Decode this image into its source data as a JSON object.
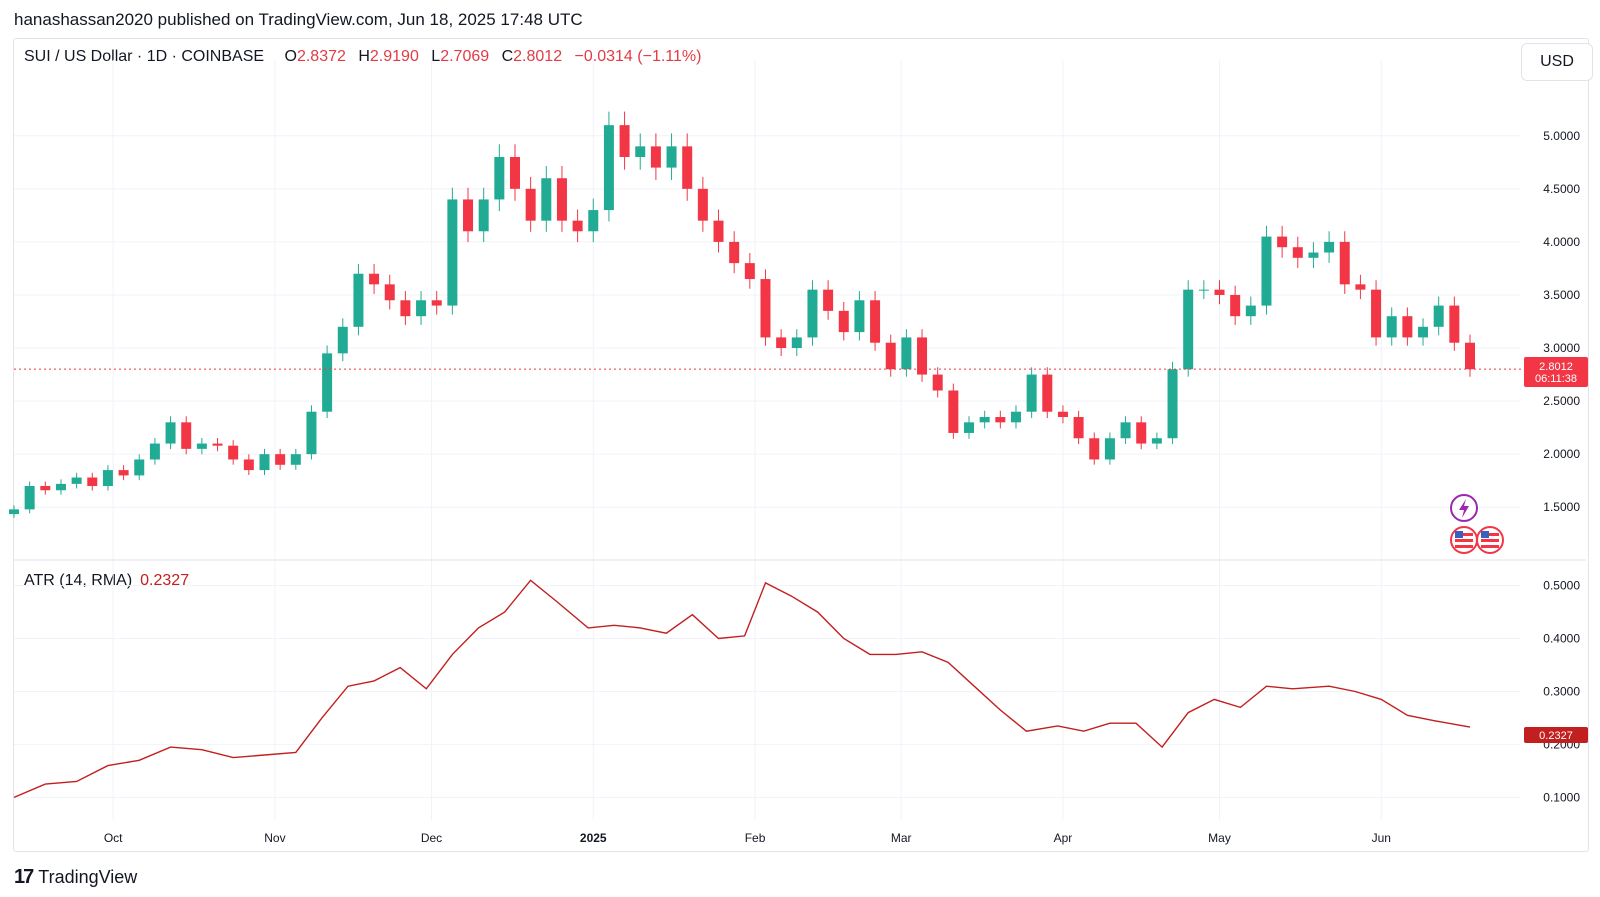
{
  "header": {
    "published_text": "hanashassan2020 published on TradingView.com, Jun 18, 2025 17:48 UTC"
  },
  "legend": {
    "symbol": "SUI / US Dollar · 1D · COINBASE",
    "o_label": "O",
    "o_value": "2.8372",
    "h_label": "H",
    "h_value": "2.9190",
    "l_label": "L",
    "l_value": "2.7069",
    "c_label": "C",
    "c_value": "2.8012",
    "change": "−0.0314 (−1.11%)"
  },
  "currency_button": "USD",
  "atr_legend": {
    "label": "ATR (14, RMA)",
    "value": "0.2327"
  },
  "price_badge": {
    "price": "2.8012",
    "countdown": "06:11:38"
  },
  "atr_badge": "0.2327",
  "footer": {
    "brand": "TradingView"
  },
  "colors": {
    "up": "#22ab94",
    "down": "#f23645",
    "atr": "#c21f1f",
    "last_price": "#f23645"
  },
  "icons": [
    "lightning-icon",
    "us-flag-icon",
    "us-flag-icon"
  ],
  "chart_data": [
    {
      "type": "candlestick",
      "title": "SUI / US Dollar · 1D · COINBASE",
      "x_ticks": [
        "Oct",
        "Nov",
        "Dec",
        "2025",
        "Feb",
        "Mar",
        "Apr",
        "May",
        "Jun"
      ],
      "y_ticks": [
        "1.5000",
        "2.0000",
        "2.5000",
        "3.0000",
        "3.5000",
        "4.0000",
        "4.5000",
        "5.0000"
      ],
      "ylim": [
        1.05,
        5.45
      ],
      "x_range": [
        "2024-09-12",
        "2025-06-18"
      ],
      "last_price": 2.8012,
      "closes": [
        {
          "d": "2024-09-12",
          "c": 1.48
        },
        {
          "d": "2024-09-15",
          "c": 1.7
        },
        {
          "d": "2024-09-18",
          "c": 1.66
        },
        {
          "d": "2024-09-21",
          "c": 1.72
        },
        {
          "d": "2024-09-24",
          "c": 1.78
        },
        {
          "d": "2024-09-27",
          "c": 1.7
        },
        {
          "d": "2024-09-30",
          "c": 1.85
        },
        {
          "d": "2024-10-03",
          "c": 1.8
        },
        {
          "d": "2024-10-06",
          "c": 1.95
        },
        {
          "d": "2024-10-09",
          "c": 2.1
        },
        {
          "d": "2024-10-12",
          "c": 2.3
        },
        {
          "d": "2024-10-15",
          "c": 2.05
        },
        {
          "d": "2024-10-18",
          "c": 2.1
        },
        {
          "d": "2024-10-21",
          "c": 2.08
        },
        {
          "d": "2024-10-24",
          "c": 1.95
        },
        {
          "d": "2024-10-27",
          "c": 1.85
        },
        {
          "d": "2024-10-30",
          "c": 2.0
        },
        {
          "d": "2024-11-02",
          "c": 1.9
        },
        {
          "d": "2024-11-05",
          "c": 2.0
        },
        {
          "d": "2024-11-08",
          "c": 2.4
        },
        {
          "d": "2024-11-11",
          "c": 2.95
        },
        {
          "d": "2024-11-14",
          "c": 3.2
        },
        {
          "d": "2024-11-17",
          "c": 3.7
        },
        {
          "d": "2024-11-20",
          "c": 3.6
        },
        {
          "d": "2024-11-23",
          "c": 3.45
        },
        {
          "d": "2024-11-26",
          "c": 3.3
        },
        {
          "d": "2024-11-29",
          "c": 3.45
        },
        {
          "d": "2024-12-02",
          "c": 3.4
        },
        {
          "d": "2024-12-05",
          "c": 4.4
        },
        {
          "d": "2024-12-08",
          "c": 4.1
        },
        {
          "d": "2024-12-11",
          "c": 4.4
        },
        {
          "d": "2024-12-14",
          "c": 4.8
        },
        {
          "d": "2024-12-17",
          "c": 4.5
        },
        {
          "d": "2024-12-20",
          "c": 4.2
        },
        {
          "d": "2024-12-23",
          "c": 4.6
        },
        {
          "d": "2024-12-26",
          "c": 4.2
        },
        {
          "d": "2024-12-29",
          "c": 4.1
        },
        {
          "d": "2025-01-01",
          "c": 4.3
        },
        {
          "d": "2025-01-04",
          "c": 5.1
        },
        {
          "d": "2025-01-07",
          "c": 4.8
        },
        {
          "d": "2025-01-10",
          "c": 4.9
        },
        {
          "d": "2025-01-13",
          "c": 4.7
        },
        {
          "d": "2025-01-16",
          "c": 4.9
        },
        {
          "d": "2025-01-19",
          "c": 4.5
        },
        {
          "d": "2025-01-22",
          "c": 4.2
        },
        {
          "d": "2025-01-25",
          "c": 4.0
        },
        {
          "d": "2025-01-28",
          "c": 3.8
        },
        {
          "d": "2025-01-31",
          "c": 3.65
        },
        {
          "d": "2025-02-03",
          "c": 3.1
        },
        {
          "d": "2025-02-06",
          "c": 3.0
        },
        {
          "d": "2025-02-09",
          "c": 3.1
        },
        {
          "d": "2025-02-12",
          "c": 3.55
        },
        {
          "d": "2025-02-15",
          "c": 3.35
        },
        {
          "d": "2025-02-18",
          "c": 3.15
        },
        {
          "d": "2025-02-21",
          "c": 3.45
        },
        {
          "d": "2025-02-24",
          "c": 3.05
        },
        {
          "d": "2025-02-27",
          "c": 2.8
        },
        {
          "d": "2025-03-02",
          "c": 3.1
        },
        {
          "d": "2025-03-05",
          "c": 2.75
        },
        {
          "d": "2025-03-08",
          "c": 2.6
        },
        {
          "d": "2025-03-11",
          "c": 2.2
        },
        {
          "d": "2025-03-14",
          "c": 2.3
        },
        {
          "d": "2025-03-17",
          "c": 2.35
        },
        {
          "d": "2025-03-20",
          "c": 2.3
        },
        {
          "d": "2025-03-23",
          "c": 2.4
        },
        {
          "d": "2025-03-26",
          "c": 2.75
        },
        {
          "d": "2025-03-29",
          "c": 2.4
        },
        {
          "d": "2025-04-01",
          "c": 2.35
        },
        {
          "d": "2025-04-04",
          "c": 2.15
        },
        {
          "d": "2025-04-07",
          "c": 1.95
        },
        {
          "d": "2025-04-10",
          "c": 2.15
        },
        {
          "d": "2025-04-13",
          "c": 2.3
        },
        {
          "d": "2025-04-16",
          "c": 2.1
        },
        {
          "d": "2025-04-19",
          "c": 2.15
        },
        {
          "d": "2025-04-22",
          "c": 2.8
        },
        {
          "d": "2025-04-25",
          "c": 3.55
        },
        {
          "d": "2025-04-28",
          "c": 3.55
        },
        {
          "d": "2025-05-01",
          "c": 3.5
        },
        {
          "d": "2025-05-04",
          "c": 3.3
        },
        {
          "d": "2025-05-07",
          "c": 3.4
        },
        {
          "d": "2025-05-10",
          "c": 4.05
        },
        {
          "d": "2025-05-13",
          "c": 3.95
        },
        {
          "d": "2025-05-16",
          "c": 3.85
        },
        {
          "d": "2025-05-19",
          "c": 3.9
        },
        {
          "d": "2025-05-22",
          "c": 4.0
        },
        {
          "d": "2025-05-25",
          "c": 3.6
        },
        {
          "d": "2025-05-28",
          "c": 3.55
        },
        {
          "d": "2025-05-31",
          "c": 3.1
        },
        {
          "d": "2025-06-03",
          "c": 3.3
        },
        {
          "d": "2025-06-06",
          "c": 3.1
        },
        {
          "d": "2025-06-09",
          "c": 3.2
        },
        {
          "d": "2025-06-12",
          "c": 3.4
        },
        {
          "d": "2025-06-15",
          "c": 3.05
        },
        {
          "d": "2025-06-18",
          "c": 2.8
        }
      ]
    },
    {
      "type": "line",
      "title": "ATR (14, RMA)",
      "y_ticks": [
        "0.1000",
        "0.2000",
        "0.3000",
        "0.4000",
        "0.5000"
      ],
      "ylim": [
        0.095,
        0.52
      ],
      "x_range": [
        "2024-09-12",
        "2025-06-18"
      ],
      "last_value": 0.2327,
      "points": [
        {
          "d": "2024-09-12",
          "v": 0.1
        },
        {
          "d": "2024-09-18",
          "v": 0.125
        },
        {
          "d": "2024-09-24",
          "v": 0.13
        },
        {
          "d": "2024-09-30",
          "v": 0.16
        },
        {
          "d": "2024-10-06",
          "v": 0.17
        },
        {
          "d": "2024-10-12",
          "v": 0.195
        },
        {
          "d": "2024-10-18",
          "v": 0.19
        },
        {
          "d": "2024-10-24",
          "v": 0.175
        },
        {
          "d": "2024-10-30",
          "v": 0.18
        },
        {
          "d": "2024-11-05",
          "v": 0.185
        },
        {
          "d": "2024-11-10",
          "v": 0.25
        },
        {
          "d": "2024-11-15",
          "v": 0.31
        },
        {
          "d": "2024-11-20",
          "v": 0.32
        },
        {
          "d": "2024-11-25",
          "v": 0.345
        },
        {
          "d": "2024-11-30",
          "v": 0.305
        },
        {
          "d": "2024-12-05",
          "v": 0.37
        },
        {
          "d": "2024-12-10",
          "v": 0.42
        },
        {
          "d": "2024-12-15",
          "v": 0.45
        },
        {
          "d": "2024-12-20",
          "v": 0.51
        },
        {
          "d": "2024-12-25",
          "v": 0.47
        },
        {
          "d": "2024-12-31",
          "v": 0.42
        },
        {
          "d": "2025-01-05",
          "v": 0.425
        },
        {
          "d": "2025-01-10",
          "v": 0.42
        },
        {
          "d": "2025-01-15",
          "v": 0.41
        },
        {
          "d": "2025-01-20",
          "v": 0.445
        },
        {
          "d": "2025-01-25",
          "v": 0.4
        },
        {
          "d": "2025-01-30",
          "v": 0.405
        },
        {
          "d": "2025-02-03",
          "v": 0.505
        },
        {
          "d": "2025-02-08",
          "v": 0.48
        },
        {
          "d": "2025-02-13",
          "v": 0.45
        },
        {
          "d": "2025-02-18",
          "v": 0.4
        },
        {
          "d": "2025-02-23",
          "v": 0.37
        },
        {
          "d": "2025-02-28",
          "v": 0.37
        },
        {
          "d": "2025-03-05",
          "v": 0.375
        },
        {
          "d": "2025-03-10",
          "v": 0.355
        },
        {
          "d": "2025-03-15",
          "v": 0.31
        },
        {
          "d": "2025-03-20",
          "v": 0.265
        },
        {
          "d": "2025-03-25",
          "v": 0.225
        },
        {
          "d": "2025-03-31",
          "v": 0.235
        },
        {
          "d": "2025-04-05",
          "v": 0.225
        },
        {
          "d": "2025-04-10",
          "v": 0.24
        },
        {
          "d": "2025-04-15",
          "v": 0.24
        },
        {
          "d": "2025-04-20",
          "v": 0.195
        },
        {
          "d": "2025-04-25",
          "v": 0.26
        },
        {
          "d": "2025-04-30",
          "v": 0.285
        },
        {
          "d": "2025-05-05",
          "v": 0.27
        },
        {
          "d": "2025-05-10",
          "v": 0.31
        },
        {
          "d": "2025-05-15",
          "v": 0.305
        },
        {
          "d": "2025-05-22",
          "v": 0.31
        },
        {
          "d": "2025-05-27",
          "v": 0.3
        },
        {
          "d": "2025-06-01",
          "v": 0.285
        },
        {
          "d": "2025-06-06",
          "v": 0.255
        },
        {
          "d": "2025-06-11",
          "v": 0.245
        },
        {
          "d": "2025-06-18",
          "v": 0.2327
        }
      ]
    }
  ]
}
